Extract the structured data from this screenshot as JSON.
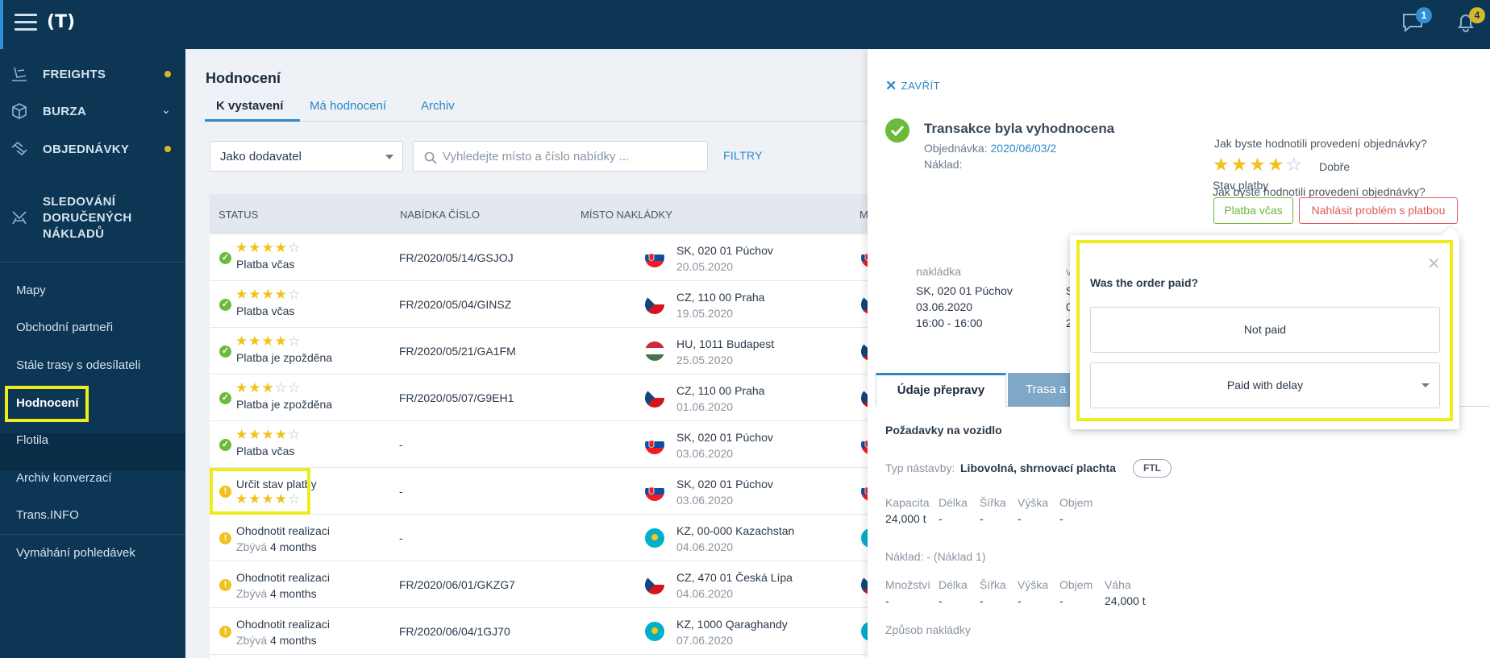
{
  "topbar": {
    "logo": "(T)",
    "chat_badge": "1",
    "bell_badge": "4"
  },
  "sidebar": {
    "main": [
      {
        "label": "FREIGHTS",
        "icon": "freights-icon",
        "dot": true
      },
      {
        "label": "BURZA",
        "icon": "exchange-icon",
        "chevron": true
      },
      {
        "label": "OBJEDNÁVKY",
        "icon": "orders-icon",
        "dot": true
      },
      {
        "label": "SLEDOVÁNÍ",
        "label2": "DORUČENÝCH",
        "label3": "NÁKLADŮ",
        "icon": "tracking-icon"
      }
    ],
    "items": [
      "Mapy",
      "Obchodní partneři",
      "Stále trasy s odesílateli",
      "Hodnocení",
      "Flotila",
      "Archiv konverzací",
      "Trans.INFO",
      "Vymáhání pohledávek"
    ]
  },
  "main": {
    "title": "Hodnocení",
    "tabs": [
      "K vystavení",
      "Má hodnocení",
      "Archiv"
    ],
    "select_value": "Jako dodavatel",
    "search_placeholder": "Vyhledejte místo a číslo nabídky ...",
    "filters_label": "FILTRY",
    "columns": [
      "STATUS",
      "NABÍDKA ČÍSLO",
      "MÍSTO NAKLÁDKY",
      "M"
    ],
    "rows": [
      {
        "kind": "ok",
        "stars": 4,
        "status": "Platba včas",
        "offer": "FR/2020/05/14/GSJOJ",
        "place": "SK, 020 01 Púchov",
        "date": "20.05.2020",
        "flag": "sk"
      },
      {
        "kind": "ok",
        "stars": 4,
        "status": "Platba včas",
        "offer": "FR/2020/05/04/GINSZ",
        "place": "CZ, 110 00 Praha",
        "date": "19.05.2020",
        "flag": "cz"
      },
      {
        "kind": "ok",
        "stars": 4,
        "status": "Platba je zpožděna",
        "offer": "FR/2020/05/21/GA1FM",
        "place": "HU, 1011 Budapest",
        "date": "25.05.2020",
        "flag": "hu"
      },
      {
        "kind": "ok",
        "stars": 3,
        "status": "Platba je zpožděna",
        "offer": "FR/2020/05/07/G9EH1",
        "place": "CZ, 110 00 Praha",
        "date": "01.06.2020",
        "flag": "cz"
      },
      {
        "kind": "ok",
        "stars": 4,
        "status": "Platba včas",
        "offer": "-",
        "place": "SK, 020 01 Púchov",
        "date": "03.06.2020",
        "flag": "sk"
      },
      {
        "kind": "warn-stars",
        "stars": 4,
        "status": "Určit stav platby",
        "offer": "-",
        "place": "SK, 020 01 Púchov",
        "date": "03.06.2020",
        "flag": "sk"
      },
      {
        "kind": "warn",
        "status": "Ohodnotit realizaci",
        "remaining_label": "Zbývá",
        "remaining_value": "4 months",
        "offer": "-",
        "place": "KZ, 00-000 Kazachstan",
        "date": "04.06.2020",
        "flag": "kz"
      },
      {
        "kind": "warn",
        "status": "Ohodnotit realizaci",
        "remaining_label": "Zbývá",
        "remaining_value": "4 months",
        "offer": "FR/2020/06/01/GKZG7",
        "place": "CZ, 470 01 Česká Lípa",
        "date": "04.06.2020",
        "flag": "cz"
      },
      {
        "kind": "warn",
        "status": "Ohodnotit realizaci",
        "remaining_label": "Zbývá",
        "remaining_value": "4 months",
        "offer": "FR/2020/06/04/1GJ70",
        "place": "KZ, 1000 Qaraghandy",
        "date": "07.06.2020",
        "flag": "kz"
      }
    ]
  },
  "panel": {
    "close_label": "ZAVŘÍT",
    "title": "Transakce byla vyhodnocena",
    "order_label": "Objednávka:",
    "order_value": "2020/06/03/2",
    "cargo_label": "Náklad:",
    "rating_question": "Jak byste hodnotili provedení objednávky?",
    "rating_stars": 4,
    "rating_word": "Dobře",
    "payment_label": "Stav platby",
    "btn_ok": "Platba včas",
    "btn_problem": "Nahlásit problém s platbou",
    "loading_label": "nakládka",
    "loading_place": "SK, 020 01 Púchov",
    "loading_date": "03.06.2020",
    "loading_time": "16:00 - 16:00",
    "unloading_peek": [
      "v",
      "S",
      "0",
      "2"
    ],
    "tab_active": "Údaje přepravy",
    "tab_other": "Trasa a",
    "vehicle_title": "Požadavky na vozidlo",
    "body_type_label": "Typ nástavby:",
    "body_type_value": "Libovolná, shrnovací plachta",
    "body_badge": "FTL",
    "vehicle_cols": [
      "Kapacita",
      "Délka",
      "Šířka",
      "Výška",
      "Objem"
    ],
    "vehicle_vals": [
      "24,000 t",
      "-",
      "-",
      "-",
      "-"
    ],
    "cargo_title_label": "Náklad:",
    "cargo_title_value": "- (Náklad 1)",
    "cargo_cols": [
      "Množství",
      "Délka",
      "Šířka",
      "Výška",
      "Objem",
      "Váha"
    ],
    "cargo_vals": [
      "-",
      "-",
      "-",
      "-",
      "-",
      "24,000 t"
    ],
    "loading_method": "Způsob nakládky"
  },
  "popover": {
    "title": "Was the order paid?",
    "option1": "Not paid",
    "option2": "Paid with delay"
  },
  "colors": {
    "navy": "#0c3654",
    "accent": "#2b88c9",
    "star": "#f1c21b",
    "ok": "#6cba3a",
    "warn": "#f1c21b",
    "danger": "#e05a5a",
    "highlight": "#eeec1a"
  }
}
